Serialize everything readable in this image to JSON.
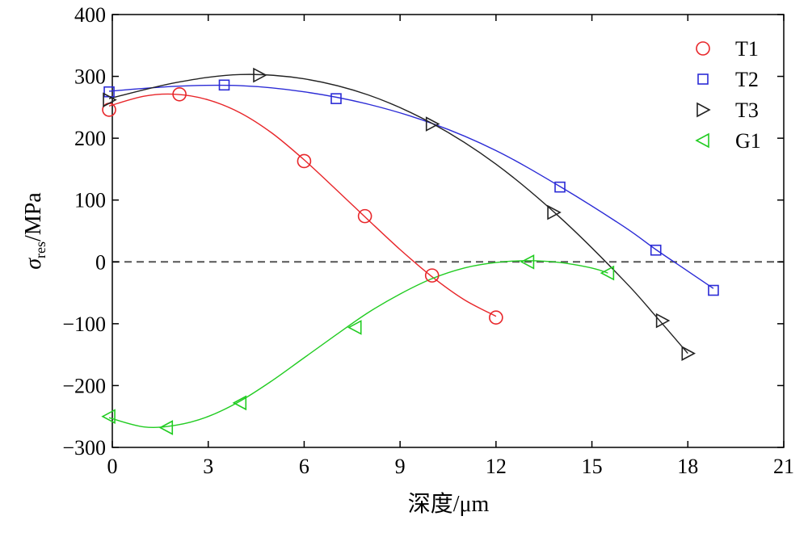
{
  "chart_data": {
    "type": "scatter",
    "xlabel": "深度/μm",
    "ylabel_main": "σ",
    "ylabel_sub": "res",
    "ylabel_unit": "/MPa",
    "xlim": [
      0,
      21
    ],
    "ylim": [
      -300,
      400
    ],
    "x_ticks": [
      0,
      3,
      6,
      9,
      12,
      15,
      18,
      21
    ],
    "y_ticks": [
      -300,
      -200,
      -100,
      0,
      100,
      200,
      300,
      400
    ],
    "x_tick_labels": [
      "0",
      "3",
      "6",
      "9",
      "12",
      "15",
      "18",
      "21"
    ],
    "y_tick_labels": [
      "−300",
      "−200",
      "−100",
      "0",
      "100",
      "200",
      "300",
      "400"
    ],
    "reference_line": {
      "y": 0,
      "style": "dashed"
    },
    "legend_position": "top-right",
    "series": [
      {
        "name": "T1",
        "marker": "circle",
        "color": "#e8262a",
        "points": [
          [
            -0.1,
            246
          ],
          [
            2.1,
            271
          ],
          [
            6,
            163
          ],
          [
            7.9,
            74
          ],
          [
            10,
            -22
          ],
          [
            12,
            -90
          ]
        ],
        "curve": [
          [
            -0.1,
            252
          ],
          [
            1,
            268
          ],
          [
            2,
            271
          ],
          [
            3,
            262
          ],
          [
            4,
            241
          ],
          [
            5,
            208
          ],
          [
            6,
            165
          ],
          [
            7,
            117
          ],
          [
            8,
            68
          ],
          [
            9,
            20
          ],
          [
            10,
            -24
          ],
          [
            11,
            -61
          ],
          [
            12,
            -88
          ]
        ]
      },
      {
        "name": "T2",
        "marker": "square",
        "color": "#2b2bd6",
        "points": [
          [
            -0.1,
            275
          ],
          [
            3.5,
            286
          ],
          [
            7,
            264
          ],
          [
            14,
            121
          ],
          [
            17,
            19
          ],
          [
            18.8,
            -46
          ]
        ],
        "curve": [
          [
            -0.1,
            276
          ],
          [
            2,
            284
          ],
          [
            4,
            285
          ],
          [
            6,
            275
          ],
          [
            8,
            255
          ],
          [
            10,
            224
          ],
          [
            12,
            180
          ],
          [
            14,
            122
          ],
          [
            16,
            57
          ],
          [
            17,
            20
          ],
          [
            18,
            -15
          ],
          [
            18.8,
            -43
          ]
        ]
      },
      {
        "name": "T3",
        "marker": "triangle-right",
        "color": "#222222",
        "points": [
          [
            -0.1,
            262
          ],
          [
            4.6,
            302
          ],
          [
            10,
            223
          ],
          [
            13.8,
            80
          ],
          [
            17.2,
            -95
          ],
          [
            18,
            -148
          ]
        ],
        "curve": [
          [
            -0.1,
            264
          ],
          [
            2,
            290
          ],
          [
            4,
            303
          ],
          [
            6,
            296
          ],
          [
            8,
            270
          ],
          [
            10,
            224
          ],
          [
            12,
            158
          ],
          [
            14,
            72
          ],
          [
            16,
            -30
          ],
          [
            17,
            -88
          ],
          [
            18,
            -148
          ]
        ]
      },
      {
        "name": "G1",
        "marker": "triangle-left",
        "color": "#22cc22",
        "points": [
          [
            -0.1,
            -250
          ],
          [
            1.7,
            -268
          ],
          [
            4,
            -228
          ],
          [
            7.6,
            -106
          ],
          [
            13,
            0
          ],
          [
            15.5,
            -18
          ]
        ],
        "curve": [
          [
            -0.1,
            -252
          ],
          [
            1,
            -267
          ],
          [
            2,
            -264
          ],
          [
            3,
            -250
          ],
          [
            4,
            -225
          ],
          [
            5,
            -192
          ],
          [
            6,
            -155
          ],
          [
            7,
            -118
          ],
          [
            8,
            -82
          ],
          [
            9,
            -52
          ],
          [
            10,
            -27
          ],
          [
            11,
            -10
          ],
          [
            12,
            -1
          ],
          [
            13,
            2
          ],
          [
            14,
            -1
          ],
          [
            15,
            -10
          ],
          [
            15.5,
            -18
          ]
        ]
      }
    ]
  }
}
